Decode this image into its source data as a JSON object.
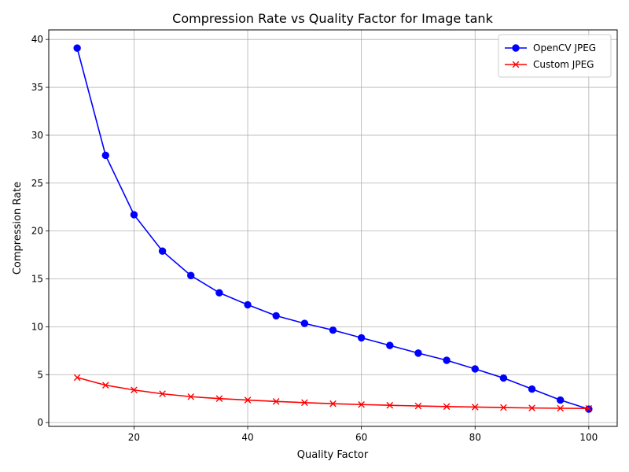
{
  "chart_data": {
    "type": "line",
    "title": "Compression Rate vs Quality Factor for Image tank",
    "xlabel": "Quality Factor",
    "ylabel": "Compression Rate",
    "xlim": [
      5,
      105
    ],
    "ylim": [
      -0.4,
      41
    ],
    "xticks": [
      20,
      40,
      60,
      80,
      100
    ],
    "yticks": [
      0,
      5,
      10,
      15,
      20,
      25,
      30,
      35,
      40
    ],
    "grid": true,
    "legend_position": "top-right",
    "x": [
      10,
      15,
      20,
      25,
      30,
      35,
      40,
      45,
      50,
      55,
      60,
      65,
      70,
      75,
      80,
      85,
      90,
      95,
      100
    ],
    "series": [
      {
        "name": "OpenCV JPEG",
        "color": "#0000ff",
        "marker": "circle",
        "values": [
          39.1,
          27.9,
          21.7,
          17.9,
          15.35,
          13.55,
          12.3,
          11.15,
          10.35,
          9.65,
          8.85,
          8.05,
          7.25,
          6.5,
          5.6,
          4.65,
          3.5,
          2.35,
          1.4
        ]
      },
      {
        "name": "Custom JPEG",
        "color": "#ff0000",
        "marker": "x",
        "values": [
          4.7,
          3.9,
          3.4,
          3.0,
          2.7,
          2.5,
          2.35,
          2.2,
          2.08,
          1.97,
          1.88,
          1.8,
          1.73,
          1.67,
          1.62,
          1.57,
          1.52,
          1.49,
          1.47
        ]
      }
    ]
  }
}
